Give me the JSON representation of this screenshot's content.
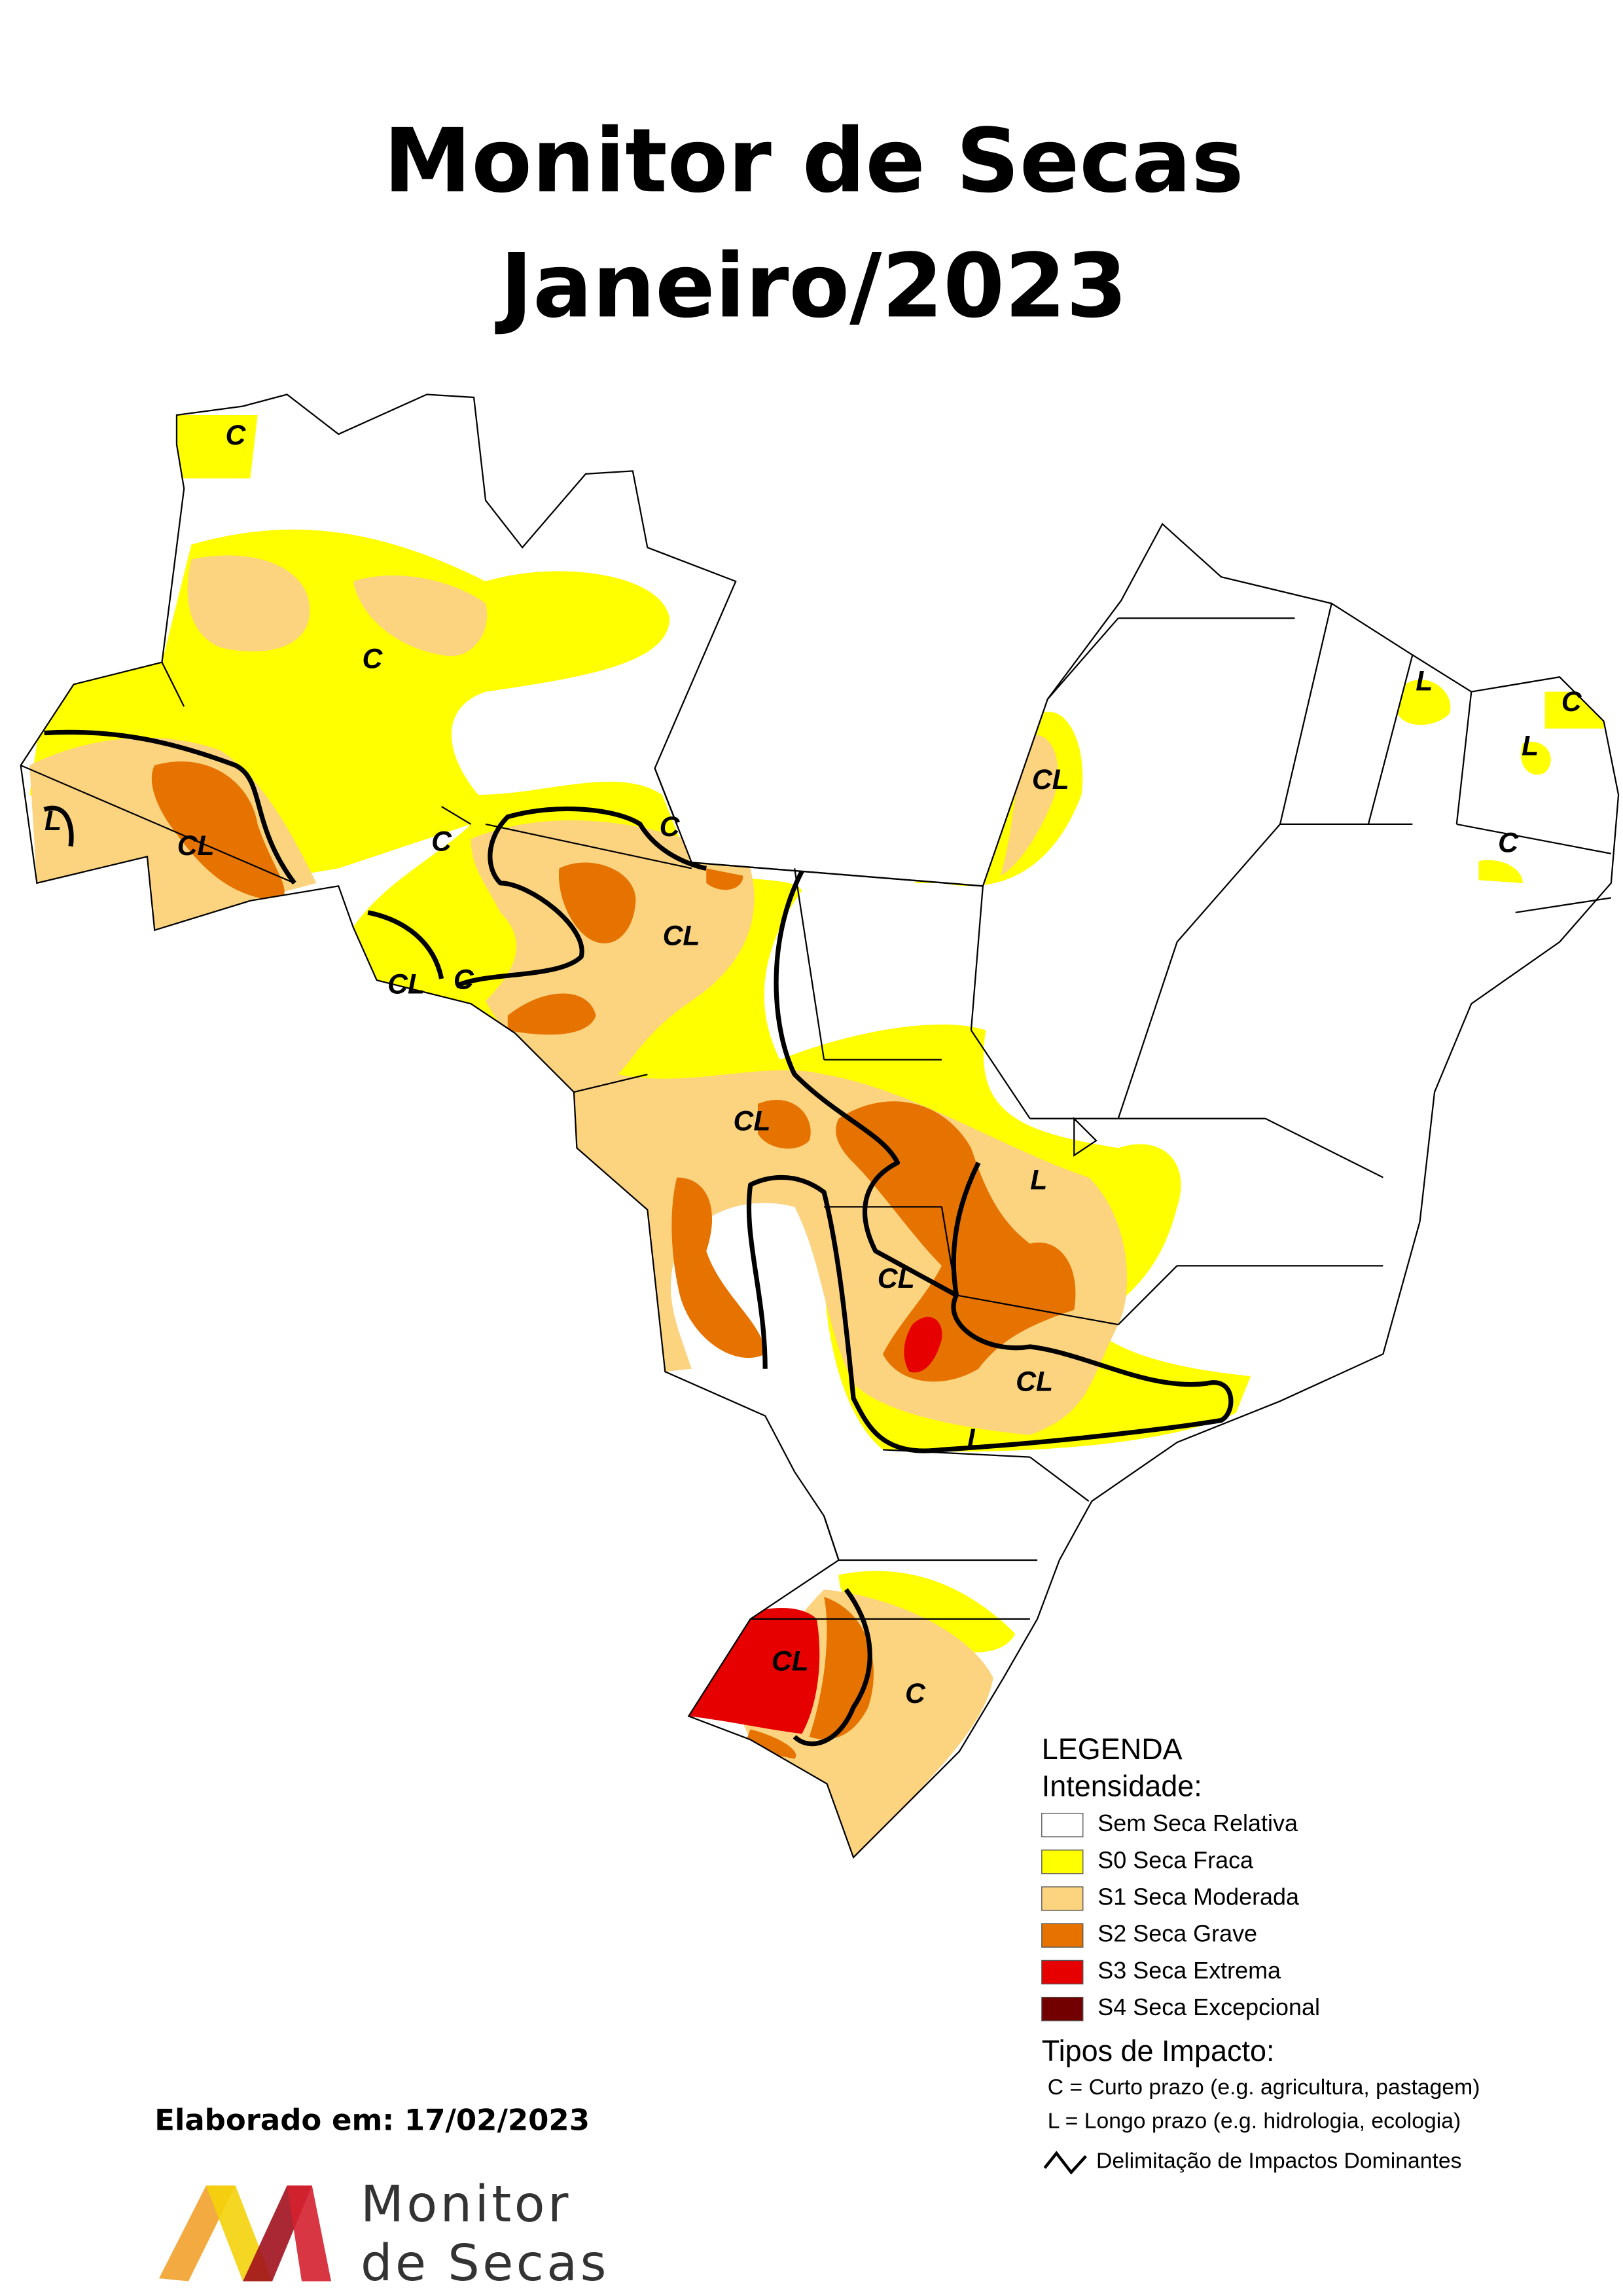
{
  "title": {
    "line1": "Monitor de Secas",
    "line2": "Janeiro/2023"
  },
  "map": {
    "labels": [
      "C",
      "C",
      "CL",
      "L",
      "C",
      "C",
      "CL",
      "CL",
      "C",
      "CL",
      "L",
      "CL",
      "CL",
      "L",
      "L",
      "C",
      "L",
      "C",
      "CL",
      "CL",
      "C"
    ]
  },
  "legend": {
    "title": "LEGENDA",
    "intensity_title": "Intensidade:",
    "items": [
      {
        "label": "Sem Seca Relativa",
        "color": "#ffffff"
      },
      {
        "label": "S0 Seca Fraca",
        "color": "#ffff00"
      },
      {
        "label": "S1 Seca Moderada",
        "color": "#fcd37f"
      },
      {
        "label": "S2 Seca Grave",
        "color": "#e67300"
      },
      {
        "label": "S3 Seca Extrema",
        "color": "#e60000"
      },
      {
        "label": "S4 Seca Excepcional",
        "color": "#730000"
      }
    ],
    "impact_title": "Tipos de Impacto:",
    "impacts": [
      "C = Curto prazo (e.g. agricultura, pastagem)",
      "L = Longo prazo (e.g. hidrologia, ecologia)",
      "Delimitação de Impactos Dominantes"
    ]
  },
  "footer": {
    "date": "Elaborado em: 17/02/2023",
    "logo_line1": "Monitor",
    "logo_line2": "de Secas"
  }
}
